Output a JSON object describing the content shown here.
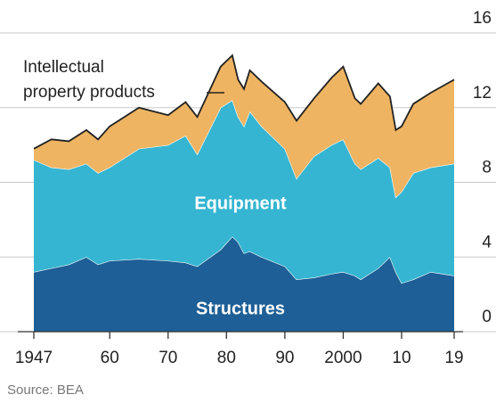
{
  "chart_data": {
    "type": "stacked_area",
    "annotations": [
      [
        "Intellectual",
        "property products"
      ],
      "Equipment",
      "Structures"
    ],
    "source": "Source: BEA",
    "x": [
      1947,
      1950,
      1953,
      1956,
      1958,
      1960,
      1965,
      1970,
      1973,
      1975,
      1979,
      1981,
      1982,
      1983,
      1984,
      1986,
      1990,
      1992,
      1995,
      1998,
      2000,
      2002,
      2003,
      2006,
      2008,
      2009,
      2010,
      2012,
      2015,
      2019
    ],
    "series": [
      {
        "name": "Structures",
        "color": "#1d5f96",
        "values": [
          3.2,
          3.4,
          3.6,
          4.0,
          3.6,
          3.8,
          3.9,
          3.8,
          3.7,
          3.5,
          4.4,
          5.1,
          4.8,
          4.2,
          4.3,
          4.0,
          3.5,
          2.8,
          2.9,
          3.1,
          3.2,
          3.0,
          2.8,
          3.4,
          4.0,
          3.2,
          2.6,
          2.8,
          3.2,
          3.0
        ]
      },
      {
        "name": "Equipment",
        "color": "#35b5d1",
        "values": [
          6.0,
          5.4,
          5.1,
          5.0,
          4.9,
          5.0,
          5.9,
          6.2,
          6.8,
          6.0,
          7.6,
          7.3,
          6.7,
          6.8,
          7.5,
          7.0,
          6.3,
          5.4,
          6.5,
          6.9,
          7.1,
          6.0,
          5.9,
          5.9,
          4.8,
          4.0,
          4.9,
          5.7,
          5.6,
          6.0
        ]
      },
      {
        "name": "Intellectual property products",
        "color": "#eeb462",
        "values": [
          0.6,
          1.5,
          1.5,
          1.8,
          1.8,
          2.2,
          2.2,
          1.6,
          1.8,
          2.0,
          2.2,
          2.4,
          2.0,
          2.0,
          2.2,
          2.4,
          2.5,
          3.1,
          3.1,
          3.6,
          3.9,
          3.5,
          3.5,
          4.0,
          3.8,
          3.6,
          3.5,
          3.7,
          4.0,
          4.5
        ]
      }
    ],
    "xlim": [
      1947,
      2019
    ],
    "xticks": [
      {
        "value": 1947,
        "label": "1947"
      },
      {
        "value": 1960,
        "label": "60"
      },
      {
        "value": 1970,
        "label": "70"
      },
      {
        "value": 1980,
        "label": "80"
      },
      {
        "value": 1990,
        "label": "90"
      },
      {
        "value": 2000,
        "label": "2000"
      },
      {
        "value": 2010,
        "label": "10"
      },
      {
        "value": 2019,
        "label": "19"
      }
    ],
    "ylim": [
      0,
      16
    ],
    "yticks": [
      0,
      4,
      8,
      12,
      16
    ],
    "grid": true
  }
}
